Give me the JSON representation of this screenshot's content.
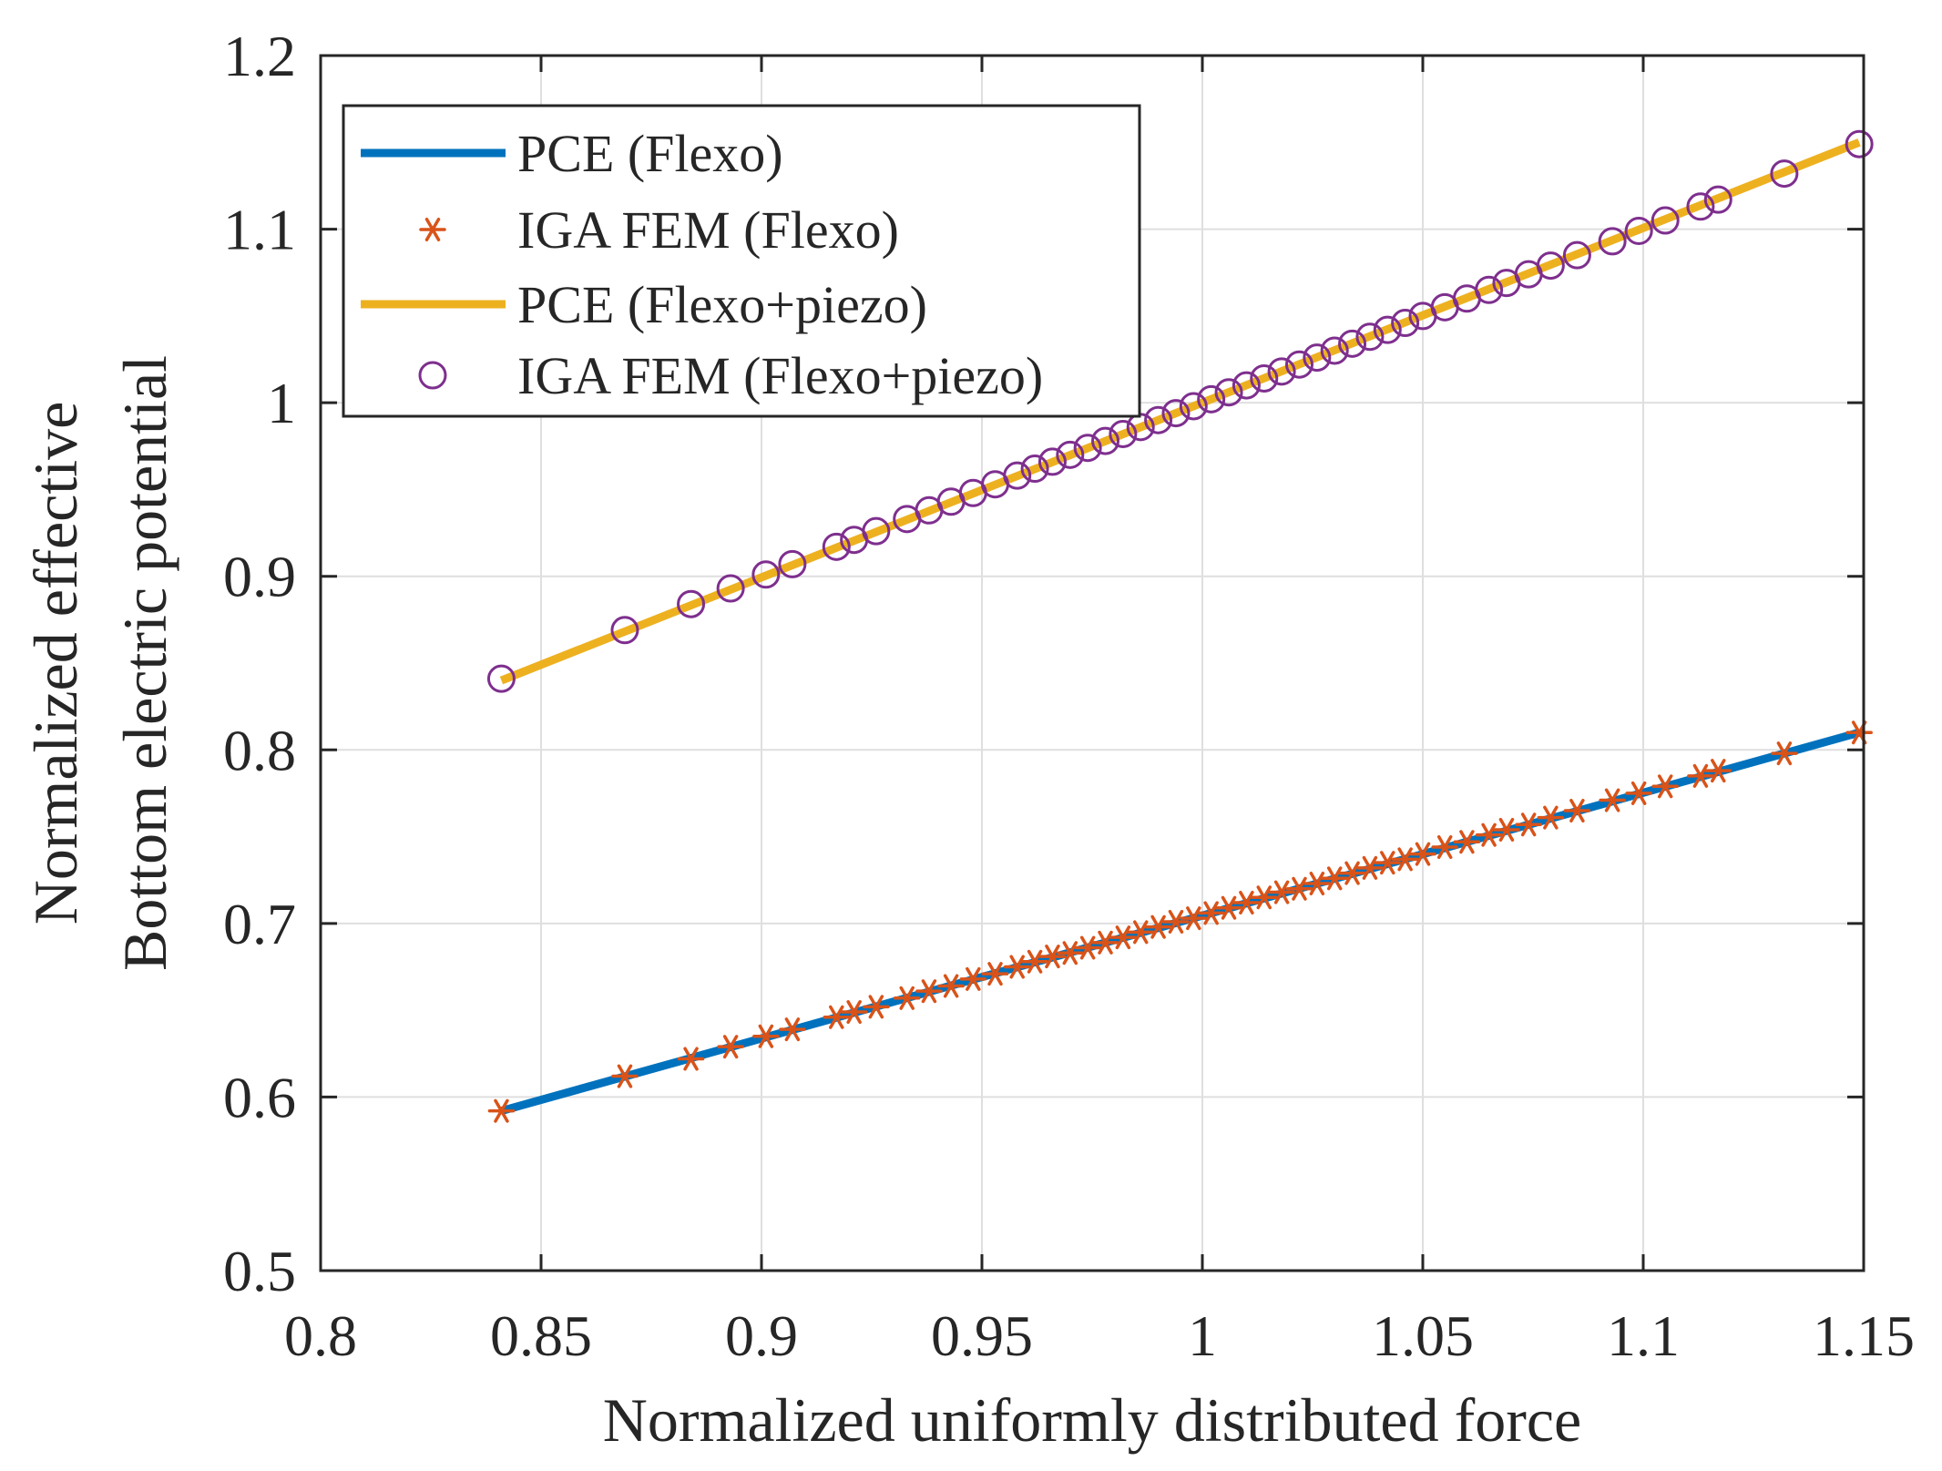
{
  "chart_data": {
    "type": "line+scatter",
    "title": "",
    "xlabel": "Normalized uniformly distributed force",
    "ylabel_lines": [
      "Normalized effective",
      "Bottom electric potential"
    ],
    "xlim": [
      0.8,
      1.15
    ],
    "ylim": [
      0.5,
      1.2
    ],
    "xticks": [
      0.8,
      0.85,
      0.9,
      0.95,
      1,
      1.05,
      1.1,
      1.15
    ],
    "xtick_labels": [
      "0.8",
      "0.85",
      "0.9",
      "0.95",
      "1",
      "1.05",
      "1.1",
      "1.15"
    ],
    "yticks": [
      0.5,
      0.6,
      0.7,
      0.8,
      0.9,
      1.0,
      1.1,
      1.2
    ],
    "ytick_labels": [
      "0.5",
      "0.6",
      "0.7",
      "0.8",
      "0.9",
      "1",
      "1.1",
      "1.2"
    ],
    "grid": true,
    "legend_position": "top-left",
    "series": [
      {
        "name": "PCE (Flexo)",
        "kind": "line",
        "color": "#0072BD",
        "x": [
          0.841,
          1.149
        ],
        "y": [
          0.592,
          0.81
        ]
      },
      {
        "name": "IGA FEM (Flexo)",
        "kind": "markers",
        "marker": "asterisk",
        "color": "#D95319",
        "x": [
          0.841,
          0.869,
          0.884,
          0.893,
          0.901,
          0.907,
          0.917,
          0.921,
          0.926,
          0.933,
          0.938,
          0.943,
          0.948,
          0.953,
          0.958,
          0.962,
          0.966,
          0.97,
          0.974,
          0.978,
          0.982,
          0.986,
          0.99,
          0.994,
          0.998,
          1.002,
          1.006,
          1.01,
          1.014,
          1.018,
          1.022,
          1.026,
          1.03,
          1.034,
          1.038,
          1.042,
          1.046,
          1.05,
          1.055,
          1.06,
          1.065,
          1.069,
          1.074,
          1.079,
          1.085,
          1.093,
          1.099,
          1.105,
          1.113,
          1.117,
          1.132,
          1.149
        ],
        "y": [
          0.592,
          0.612,
          0.622,
          0.629,
          0.635,
          0.639,
          0.646,
          0.649,
          0.652,
          0.657,
          0.661,
          0.664,
          0.668,
          0.671,
          0.675,
          0.678,
          0.681,
          0.683,
          0.686,
          0.689,
          0.692,
          0.695,
          0.698,
          0.701,
          0.703,
          0.706,
          0.709,
          0.712,
          0.715,
          0.718,
          0.72,
          0.723,
          0.726,
          0.729,
          0.732,
          0.735,
          0.737,
          0.74,
          0.744,
          0.747,
          0.751,
          0.754,
          0.757,
          0.761,
          0.765,
          0.771,
          0.775,
          0.779,
          0.785,
          0.788,
          0.798,
          0.81
        ]
      },
      {
        "name": "PCE (Flexo+piezo)",
        "kind": "line",
        "color": "#EDB120",
        "x": [
          0.841,
          1.149
        ],
        "y": [
          0.84,
          1.15
        ]
      },
      {
        "name": "IGA FEM (Flexo+piezo)",
        "kind": "markers",
        "marker": "circle",
        "color": "#7E2F8E",
        "x": [
          0.841,
          0.869,
          0.884,
          0.893,
          0.901,
          0.907,
          0.917,
          0.921,
          0.926,
          0.933,
          0.938,
          0.943,
          0.948,
          0.953,
          0.958,
          0.962,
          0.966,
          0.97,
          0.974,
          0.978,
          0.982,
          0.986,
          0.99,
          0.994,
          0.998,
          1.002,
          1.006,
          1.01,
          1.014,
          1.018,
          1.022,
          1.026,
          1.03,
          1.034,
          1.038,
          1.042,
          1.046,
          1.05,
          1.055,
          1.06,
          1.065,
          1.069,
          1.074,
          1.079,
          1.085,
          1.093,
          1.099,
          1.105,
          1.113,
          1.117,
          1.132,
          1.149
        ],
        "y": [
          0.841,
          0.869,
          0.884,
          0.893,
          0.901,
          0.907,
          0.917,
          0.921,
          0.926,
          0.933,
          0.938,
          0.943,
          0.948,
          0.953,
          0.958,
          0.962,
          0.966,
          0.97,
          0.974,
          0.978,
          0.982,
          0.986,
          0.99,
          0.994,
          0.998,
          1.002,
          1.006,
          1.01,
          1.014,
          1.018,
          1.022,
          1.026,
          1.03,
          1.034,
          1.038,
          1.042,
          1.046,
          1.05,
          1.055,
          1.06,
          1.065,
          1.069,
          1.074,
          1.079,
          1.085,
          1.093,
          1.099,
          1.105,
          1.113,
          1.117,
          1.132,
          1.149
        ]
      }
    ]
  }
}
